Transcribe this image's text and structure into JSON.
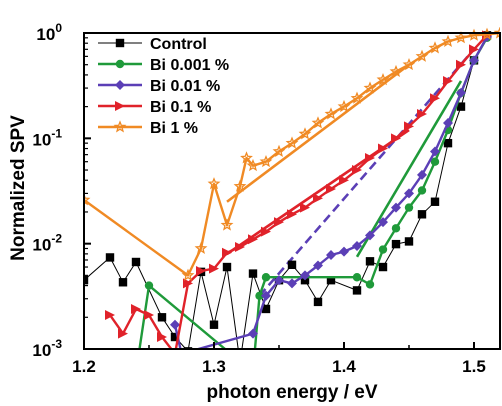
{
  "chart_data": {
    "type": "line",
    "xlabel": "photon energy / eV",
    "ylabel": "Normalized SPV",
    "xlim": [
      1.2,
      1.52
    ],
    "ylim": [
      0.001,
      1
    ],
    "yscale": "log",
    "grid": false,
    "legend_position": "top-left",
    "x_ticks": [
      {
        "value": 1.2,
        "label": "1.2"
      },
      {
        "value": 1.3,
        "label": "1.3"
      },
      {
        "value": 1.4,
        "label": "1.4"
      },
      {
        "value": 1.5,
        "label": "1.5"
      }
    ],
    "y_ticks": [
      {
        "value": 0.001,
        "base": "10",
        "exp": "-3"
      },
      {
        "value": 0.01,
        "base": "10",
        "exp": "-2"
      },
      {
        "value": 0.1,
        "base": "10",
        "exp": "-1"
      },
      {
        "value": 1,
        "base": "10",
        "exp": "0"
      }
    ],
    "series": [
      {
        "name": "Control",
        "color": "#000000",
        "marker": "square",
        "x": [
          1.2,
          1.22,
          1.23,
          1.24,
          1.26,
          1.27,
          1.28,
          1.29,
          1.3,
          1.31,
          1.32,
          1.33,
          1.34,
          1.35,
          1.36,
          1.37,
          1.38,
          1.39,
          1.41,
          1.42,
          1.43,
          1.44,
          1.45,
          1.46,
          1.47,
          1.48,
          1.49,
          1.5,
          1.51
        ],
        "y": [
          0.0045,
          0.0074,
          0.0043,
          0.0067,
          0.002,
          0.0013,
          0.00095,
          0.0054,
          0.0017,
          0.006,
          0.00075,
          0.0052,
          0.0024,
          0.0045,
          0.0063,
          0.0045,
          0.0028,
          0.0045,
          0.0036,
          0.0068,
          0.006,
          0.0099,
          0.0105,
          0.019,
          0.025,
          0.09,
          0.2,
          0.55,
          0.95
        ]
      },
      {
        "name": "Bi 0.001 %",
        "color": "#1f9a3a",
        "marker": "circle",
        "x": [
          1.24,
          1.25,
          1.33,
          1.335,
          1.34,
          1.41,
          1.42,
          1.43,
          1.44,
          1.45,
          1.46,
          1.47,
          1.48,
          1.49,
          1.5,
          1.51
        ],
        "y": [
          0.0006,
          0.004,
          0.0006,
          0.0032,
          0.0048,
          0.0048,
          0.0041,
          0.0088,
          0.014,
          0.022,
          0.032,
          0.06,
          0.12,
          0.27,
          0.55,
          0.9
        ]
      },
      {
        "name": "Bi 0.01 %",
        "color": "#5b3fb6",
        "marker": "diamond",
        "x": [
          1.27,
          1.275,
          1.33,
          1.34,
          1.35,
          1.36,
          1.37,
          1.38,
          1.39,
          1.4,
          1.41,
          1.42,
          1.43,
          1.44,
          1.45,
          1.46,
          1.47,
          1.48,
          1.49,
          1.5,
          1.51
        ],
        "y": [
          0.0017,
          0.0009,
          0.0014,
          0.0032,
          0.0045,
          0.0042,
          0.005,
          0.0062,
          0.0078,
          0.0084,
          0.0095,
          0.012,
          0.016,
          0.022,
          0.03,
          0.045,
          0.075,
          0.14,
          0.27,
          0.55,
          0.92
        ]
      },
      {
        "name": "Bi 0.1 %",
        "color": "#e0222a",
        "marker": "triangle-right",
        "x": [
          1.22,
          1.23,
          1.24,
          1.25,
          1.26,
          1.27,
          1.28,
          1.29,
          1.3,
          1.31,
          1.32,
          1.33,
          1.34,
          1.35,
          1.36,
          1.37,
          1.38,
          1.39,
          1.4,
          1.41,
          1.42,
          1.43,
          1.44,
          1.45,
          1.46,
          1.47,
          1.48,
          1.49,
          1.5,
          1.51
        ],
        "y": [
          0.0021,
          0.0014,
          0.0024,
          0.0021,
          0.0013,
          0.0009,
          0.0042,
          0.0055,
          0.0058,
          0.0082,
          0.0093,
          0.011,
          0.013,
          0.016,
          0.019,
          0.022,
          0.027,
          0.033,
          0.04,
          0.05,
          0.065,
          0.08,
          0.1,
          0.13,
          0.17,
          0.24,
          0.35,
          0.5,
          0.7,
          0.95
        ]
      },
      {
        "name": "Bi 1 %",
        "color": "#f08a24",
        "marker": "star",
        "x": [
          1.2,
          1.28,
          1.29,
          1.3,
          1.31,
          1.32,
          1.325,
          1.33,
          1.34,
          1.35,
          1.36,
          1.37,
          1.38,
          1.39,
          1.4,
          1.41,
          1.42,
          1.43,
          1.44,
          1.45,
          1.46,
          1.47,
          1.48,
          1.49,
          1.5,
          1.51,
          1.52
        ],
        "y": [
          0.026,
          0.005,
          0.009,
          0.037,
          0.015,
          0.035,
          0.065,
          0.055,
          0.06,
          0.075,
          0.09,
          0.11,
          0.14,
          0.17,
          0.2,
          0.24,
          0.3,
          0.36,
          0.43,
          0.5,
          0.6,
          0.72,
          0.83,
          0.9,
          0.95,
          0.97,
          1.0
        ]
      }
    ],
    "fit_lines": [
      {
        "series": "Bi 0.01 %",
        "color": "#5b3fb6",
        "dashed": true,
        "x": [
          1.335,
          1.5
        ],
        "y": [
          0.0032,
          0.7
        ]
      },
      {
        "series": "Bi 0.001 %",
        "color": "#1f9a3a",
        "dashed": false,
        "x": [
          1.41,
          1.49
        ],
        "y": [
          0.0075,
          0.35
        ]
      },
      {
        "series": "Bi 0.1 %",
        "color": "#e0222a",
        "dashed": false,
        "x": [
          1.31,
          1.45
        ],
        "y": [
          0.008,
          0.12
        ]
      },
      {
        "series": "Bi 1 %",
        "color": "#f08a24",
        "dashed": false,
        "x": [
          1.31,
          1.45
        ],
        "y": [
          0.025,
          0.5
        ]
      }
    ]
  }
}
